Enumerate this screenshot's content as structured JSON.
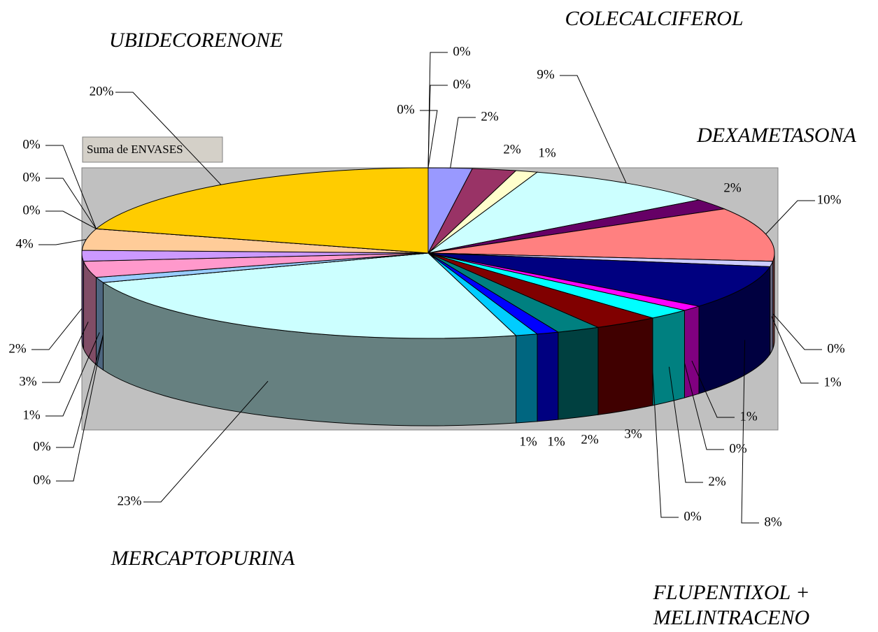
{
  "chart_data": {
    "type": "pie",
    "legend_button": "Suma de ENVASES",
    "annotations": [
      "UBIDECORENONE",
      "COLECALCIFEROL",
      "DEXAMETASONA",
      "MERCAPTOPURINA",
      "FLUPENTIXOL + MELINTRACENO"
    ],
    "values": [
      0,
      0,
      2,
      2,
      1,
      9,
      2,
      10,
      0,
      1,
      8,
      1,
      0,
      2,
      0,
      3,
      2,
      1,
      1,
      23,
      0,
      0,
      1,
      3,
      2,
      4,
      0,
      0,
      0,
      20,
      0
    ],
    "value_labels": [
      "0%",
      "0%",
      "2%",
      "2%",
      "1%",
      "9%",
      "2%",
      "10%",
      "0%",
      "1%",
      "8%",
      "1%",
      "0%",
      "2%",
      "0%",
      "3%",
      "2%",
      "1%",
      "1%",
      "23%",
      "0%",
      "0%",
      "1%",
      "3%",
      "2%",
      "4%",
      "0%",
      "0%",
      "0%",
      "20%",
      "0%"
    ],
    "colors": [
      "#ff9900",
      "#ffffff",
      "#9999ff",
      "#993366",
      "#ffffcc",
      "#ccffff",
      "#660066",
      "#ff8080",
      "#ccccff",
      "#ccccff",
      "#000080",
      "#ff00ff",
      "#808000",
      "#00ffff",
      "#800080",
      "#800000",
      "#008080",
      "#0000ff",
      "#00ccff",
      "#ccffff",
      "#c0c0c0",
      "#333333",
      "#99ccff",
      "#ff99cc",
      "#cc99ff",
      "#ffcc99",
      "#3366ff",
      "#33cccc",
      "#99cc00",
      "#ffcc00",
      "#ff9900"
    ]
  }
}
